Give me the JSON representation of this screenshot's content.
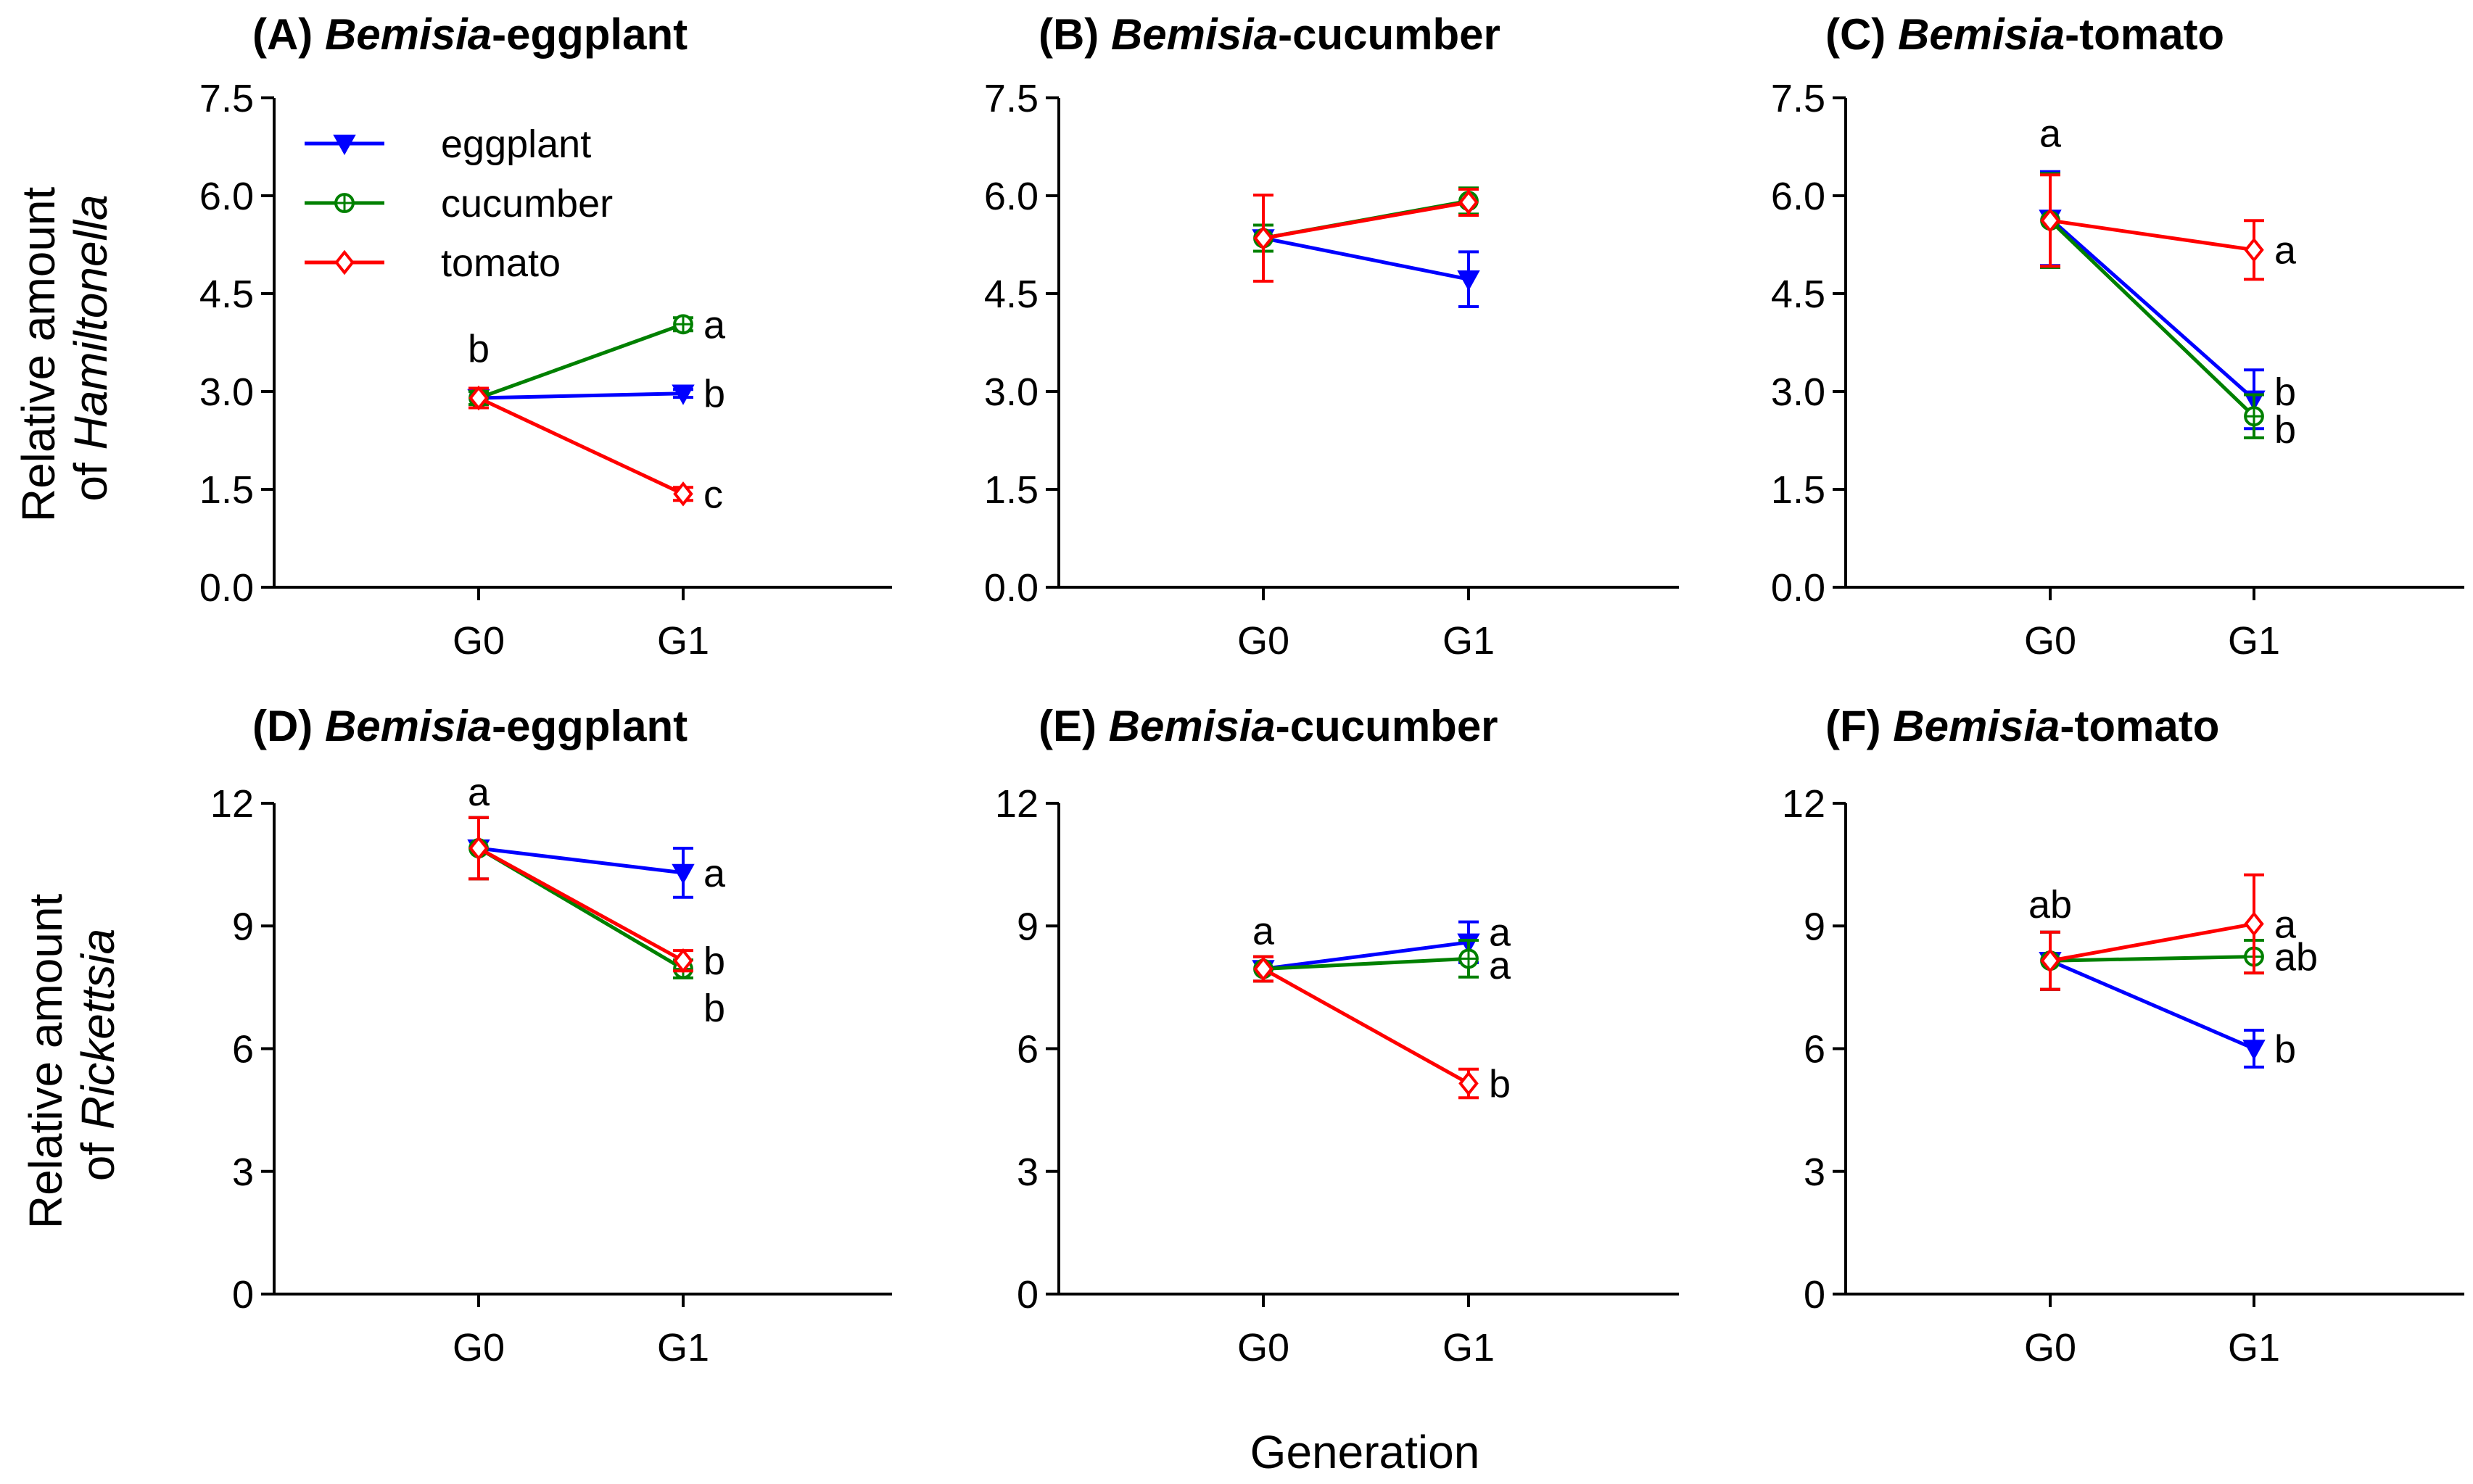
{
  "figure": {
    "xlabel": "Generation",
    "row_ylabels": [
      {
        "line1": "Relative amount",
        "line2_prefix": "of ",
        "line2_italic": "Hamiltonella"
      },
      {
        "line1": "Relative amount",
        "line2_prefix": "of ",
        "line2_italic": "Rickettsia"
      }
    ],
    "legend": [
      {
        "name": "eggplant",
        "color": "#0000ff",
        "marker": "triangle-down-filled"
      },
      {
        "name": "cucumber",
        "color": "#008000",
        "marker": "circle-open-cross"
      },
      {
        "name": "tomato",
        "color": "#ff0000",
        "marker": "diamond-open"
      }
    ]
  },
  "chart_data": [
    {
      "type": "line",
      "title": {
        "label": "(A) ",
        "italic": "Bemisia",
        "suffix": "-eggplant"
      },
      "categories": [
        "G0",
        "G1"
      ],
      "ylim": [
        0,
        7.5
      ],
      "yticks": [
        "0.0",
        "1.5",
        "3.0",
        "4.5",
        "6.0",
        "7.5"
      ],
      "ytick_values": [
        0,
        1.5,
        3,
        4.5,
        6,
        7.5
      ],
      "series": [
        {
          "name": "eggplant",
          "values": [
            2.9,
            2.97
          ],
          "errors": [
            0.1,
            0.06
          ]
        },
        {
          "name": "cucumber",
          "values": [
            2.9,
            4.03
          ],
          "errors": [
            0.1,
            0.1
          ]
        },
        {
          "name": "tomato",
          "values": [
            2.9,
            1.43
          ],
          "errors": [
            0.15,
            0.1
          ]
        }
      ],
      "annotations": [
        {
          "text": "b",
          "x": "G0",
          "y": 3.45,
          "align": "above"
        },
        {
          "text": "a",
          "x": "G1",
          "y": 4.03,
          "align": "right"
        },
        {
          "text": "b",
          "x": "G1",
          "y": 2.97,
          "align": "right"
        },
        {
          "text": "c",
          "x": "G1",
          "y": 1.43,
          "align": "right"
        }
      ]
    },
    {
      "type": "line",
      "title": {
        "label": "(B) ",
        "italic": "Bemisia",
        "suffix": "-cucumber"
      },
      "categories": [
        "G0",
        "G1"
      ],
      "ylim": [
        0,
        7.5
      ],
      "yticks": [
        "0.0",
        "1.5",
        "3.0",
        "4.5",
        "6.0",
        "7.5"
      ],
      "ytick_values": [
        0,
        1.5,
        3,
        4.5,
        6,
        7.5
      ],
      "series": [
        {
          "name": "eggplant",
          "values": [
            5.35,
            4.72
          ],
          "errors": [
            0.2,
            0.42
          ]
        },
        {
          "name": "cucumber",
          "values": [
            5.35,
            5.92
          ],
          "errors": [
            0.2,
            0.2
          ]
        },
        {
          "name": "tomato",
          "values": [
            5.35,
            5.9
          ],
          "errors": [
            0.66,
            0.2
          ]
        }
      ],
      "annotations": []
    },
    {
      "type": "line",
      "title": {
        "label": "(C) ",
        "italic": "Bemisia",
        "suffix": "-tomato"
      },
      "categories": [
        "G0",
        "G1"
      ],
      "ylim": [
        0,
        7.5
      ],
      "yticks": [
        "0.0",
        "1.5",
        "3.0",
        "4.5",
        "6.0",
        "7.5"
      ],
      "ytick_values": [
        0,
        1.5,
        3,
        4.5,
        6,
        7.5
      ],
      "series": [
        {
          "name": "eggplant",
          "values": [
            5.65,
            2.88
          ],
          "errors": [
            0.72,
            0.45
          ]
        },
        {
          "name": "cucumber",
          "values": [
            5.62,
            2.62
          ],
          "errors": [
            0.72,
            0.33
          ]
        },
        {
          "name": "tomato",
          "values": [
            5.62,
            5.17
          ],
          "errors": [
            0.7,
            0.45
          ]
        }
      ],
      "annotations": [
        {
          "text": "a",
          "x": "G0",
          "y": 6.75,
          "align": "above"
        },
        {
          "text": "a",
          "x": "G1",
          "y": 5.17,
          "align": "right"
        },
        {
          "text": "b",
          "x": "G1",
          "y": 3.0,
          "align": "right"
        },
        {
          "text": "b",
          "x": "G1",
          "y": 2.42,
          "align": "right"
        }
      ]
    },
    {
      "type": "line",
      "title": {
        "label": "(D) ",
        "italic": "Bemisia",
        "suffix": "-eggplant"
      },
      "categories": [
        "G0",
        "G1"
      ],
      "ylim": [
        0,
        12
      ],
      "yticks": [
        "0",
        "3",
        "6",
        "9",
        "12"
      ],
      "ytick_values": [
        0,
        3,
        6,
        9,
        12
      ],
      "series": [
        {
          "name": "eggplant",
          "values": [
            10.9,
            10.3
          ],
          "errors": [
            0.75,
            0.6
          ]
        },
        {
          "name": "cucumber",
          "values": [
            10.9,
            7.95
          ],
          "errors": [
            0.75,
            0.22
          ]
        },
        {
          "name": "tomato",
          "values": [
            10.9,
            8.15
          ],
          "errors": [
            0.75,
            0.25
          ]
        }
      ],
      "annotations": [
        {
          "text": "a",
          "x": "G0",
          "y": 11.95,
          "align": "above"
        },
        {
          "text": "a",
          "x": "G1",
          "y": 10.3,
          "align": "right"
        },
        {
          "text": "b",
          "x": "G1",
          "y": 8.15,
          "align": "right"
        },
        {
          "text": "b",
          "x": "G1",
          "y": 7.0,
          "align": "right"
        }
      ]
    },
    {
      "type": "line",
      "title": {
        "label": "(E) ",
        "italic": "Bemisia",
        "suffix": "-cucumber"
      },
      "categories": [
        "G0",
        "G1"
      ],
      "ylim": [
        0,
        12
      ],
      "yticks": [
        "0",
        "3",
        "6",
        "9",
        "12"
      ],
      "ytick_values": [
        0,
        3,
        6,
        9,
        12
      ],
      "series": [
        {
          "name": "eggplant",
          "values": [
            7.95,
            8.6
          ],
          "errors": [
            0.3,
            0.5
          ]
        },
        {
          "name": "cucumber",
          "values": [
            7.95,
            8.2
          ],
          "errors": [
            0.3,
            0.45
          ]
        },
        {
          "name": "tomato",
          "values": [
            7.95,
            5.15
          ],
          "errors": [
            0.3,
            0.35
          ]
        }
      ],
      "annotations": [
        {
          "text": "a",
          "x": "G0",
          "y": 8.55,
          "align": "above"
        },
        {
          "text": "a",
          "x": "G1",
          "y": 8.85,
          "align": "right"
        },
        {
          "text": "a",
          "x": "G1",
          "y": 8.05,
          "align": "right"
        },
        {
          "text": "b",
          "x": "G1",
          "y": 5.15,
          "align": "right"
        }
      ]
    },
    {
      "type": "line",
      "title": {
        "label": "(F) ",
        "italic": "Bemisia",
        "suffix": "-tomato"
      },
      "categories": [
        "G0",
        "G1"
      ],
      "ylim": [
        0,
        12
      ],
      "yticks": [
        "0",
        "3",
        "6",
        "9",
        "12"
      ],
      "ytick_values": [
        0,
        3,
        6,
        9,
        12
      ],
      "series": [
        {
          "name": "eggplant",
          "values": [
            8.15,
            6.0
          ],
          "errors": [
            0.7,
            0.45
          ]
        },
        {
          "name": "cucumber",
          "values": [
            8.15,
            8.25
          ],
          "errors": [
            0.7,
            0.4
          ]
        },
        {
          "name": "tomato",
          "values": [
            8.15,
            9.05
          ],
          "errors": [
            0.7,
            1.2
          ]
        }
      ],
      "annotations": [
        {
          "text": "ab",
          "x": "G0",
          "y": 9.2,
          "align": "above"
        },
        {
          "text": "a",
          "x": "G1",
          "y": 9.05,
          "align": "right"
        },
        {
          "text": "ab",
          "x": "G1",
          "y": 8.25,
          "align": "right"
        },
        {
          "text": "b",
          "x": "G1",
          "y": 6.0,
          "align": "right"
        }
      ]
    }
  ]
}
